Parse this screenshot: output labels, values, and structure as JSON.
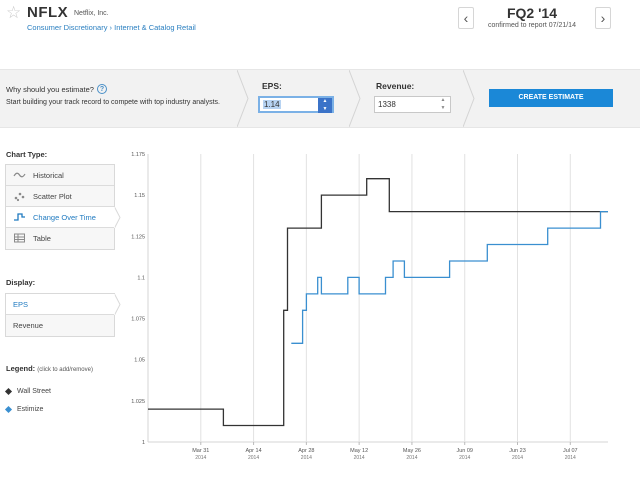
{
  "header": {
    "ticker": "NFLX",
    "company": "Netflix, Inc.",
    "sector": "Consumer Discretionary › Internet & Catalog Retail",
    "quarter": "FQ2 '14",
    "confirmed": "confirmed to report 07/21/14",
    "prev_icon": "chevron-left-icon",
    "next_icon": "chevron-right-icon",
    "star_icon": "star-icon"
  },
  "estimate": {
    "why_title": "Why should you estimate?",
    "help_glyph": "?",
    "why_desc": "Start building your track record to compete with top industry analysts.",
    "eps_label": "EPS:",
    "eps_value": "1.14",
    "revenue_label": "Revenue:",
    "revenue_value": "1338",
    "create_label": "CREATE ESTIMATE"
  },
  "sidebar": {
    "chart_type_label": "Chart Type:",
    "chart_types": [
      {
        "label": "Historical",
        "icon": "wave-icon"
      },
      {
        "label": "Scatter Plot",
        "icon": "scatter-icon"
      },
      {
        "label": "Change Over Time",
        "icon": "step-line-icon"
      },
      {
        "label": "Table",
        "icon": "table-icon"
      }
    ],
    "active_chart_type": "Change Over Time",
    "display_label": "Display:",
    "display_items": [
      {
        "label": "EPS"
      },
      {
        "label": "Revenue"
      }
    ],
    "active_display": "EPS",
    "legend_label": "Legend:",
    "legend_hint": "(click to add/remove)",
    "legend_items": [
      {
        "label": "Wall Street",
        "color": "#333333"
      },
      {
        "label": "Estimize",
        "color": "#3a8fd0"
      }
    ]
  },
  "colors": {
    "accent": "#1b88d7",
    "wall_street": "#333333",
    "estimize": "#3a8fd0"
  },
  "chart_data": {
    "type": "line",
    "xlabel": "",
    "ylabel": "",
    "ylim": [
      1.0,
      1.175
    ],
    "xlim": [
      "2014-03-17",
      "2014-07-17"
    ],
    "grid": true,
    "step": true,
    "y_ticks": [
      1,
      1.025,
      1.05,
      1.075,
      1.1,
      1.125,
      1.15,
      1.175
    ],
    "x_ticks": [
      {
        "date": "2014-03-31",
        "label": "Mar 31",
        "year": "2014"
      },
      {
        "date": "2014-04-14",
        "label": "Apr 14",
        "year": "2014"
      },
      {
        "date": "2014-04-28",
        "label": "Apr 28",
        "year": "2014"
      },
      {
        "date": "2014-05-12",
        "label": "May 12",
        "year": "2014"
      },
      {
        "date": "2014-05-26",
        "label": "May 26",
        "year": "2014"
      },
      {
        "date": "2014-06-09",
        "label": "Jun 09",
        "year": "2014"
      },
      {
        "date": "2014-06-23",
        "label": "Jun 23",
        "year": "2014"
      },
      {
        "date": "2014-07-07",
        "label": "Jul 07",
        "year": "2014"
      }
    ],
    "series": [
      {
        "name": "Wall Street",
        "points": [
          [
            "2014-03-17",
            1.02
          ],
          [
            "2014-04-06",
            1.01
          ],
          [
            "2014-04-22",
            1.08
          ],
          [
            "2014-04-23",
            1.13
          ],
          [
            "2014-05-02",
            1.15
          ],
          [
            "2014-05-10",
            1.15
          ],
          [
            "2014-05-14",
            1.16
          ],
          [
            "2014-05-20",
            1.14
          ],
          [
            "2014-07-17",
            1.14
          ]
        ]
      },
      {
        "name": "Estimize",
        "points": [
          [
            "2014-04-24",
            1.06
          ],
          [
            "2014-04-27",
            1.08
          ],
          [
            "2014-04-28",
            1.09
          ],
          [
            "2014-05-01",
            1.1
          ],
          [
            "2014-05-02",
            1.09
          ],
          [
            "2014-05-09",
            1.1
          ],
          [
            "2014-05-12",
            1.09
          ],
          [
            "2014-05-19",
            1.1
          ],
          [
            "2014-05-21",
            1.11
          ],
          [
            "2014-05-24",
            1.1
          ],
          [
            "2014-06-05",
            1.11
          ],
          [
            "2014-06-15",
            1.12
          ],
          [
            "2014-07-01",
            1.13
          ],
          [
            "2014-07-15",
            1.14
          ],
          [
            "2014-07-17",
            1.14
          ]
        ]
      }
    ]
  }
}
